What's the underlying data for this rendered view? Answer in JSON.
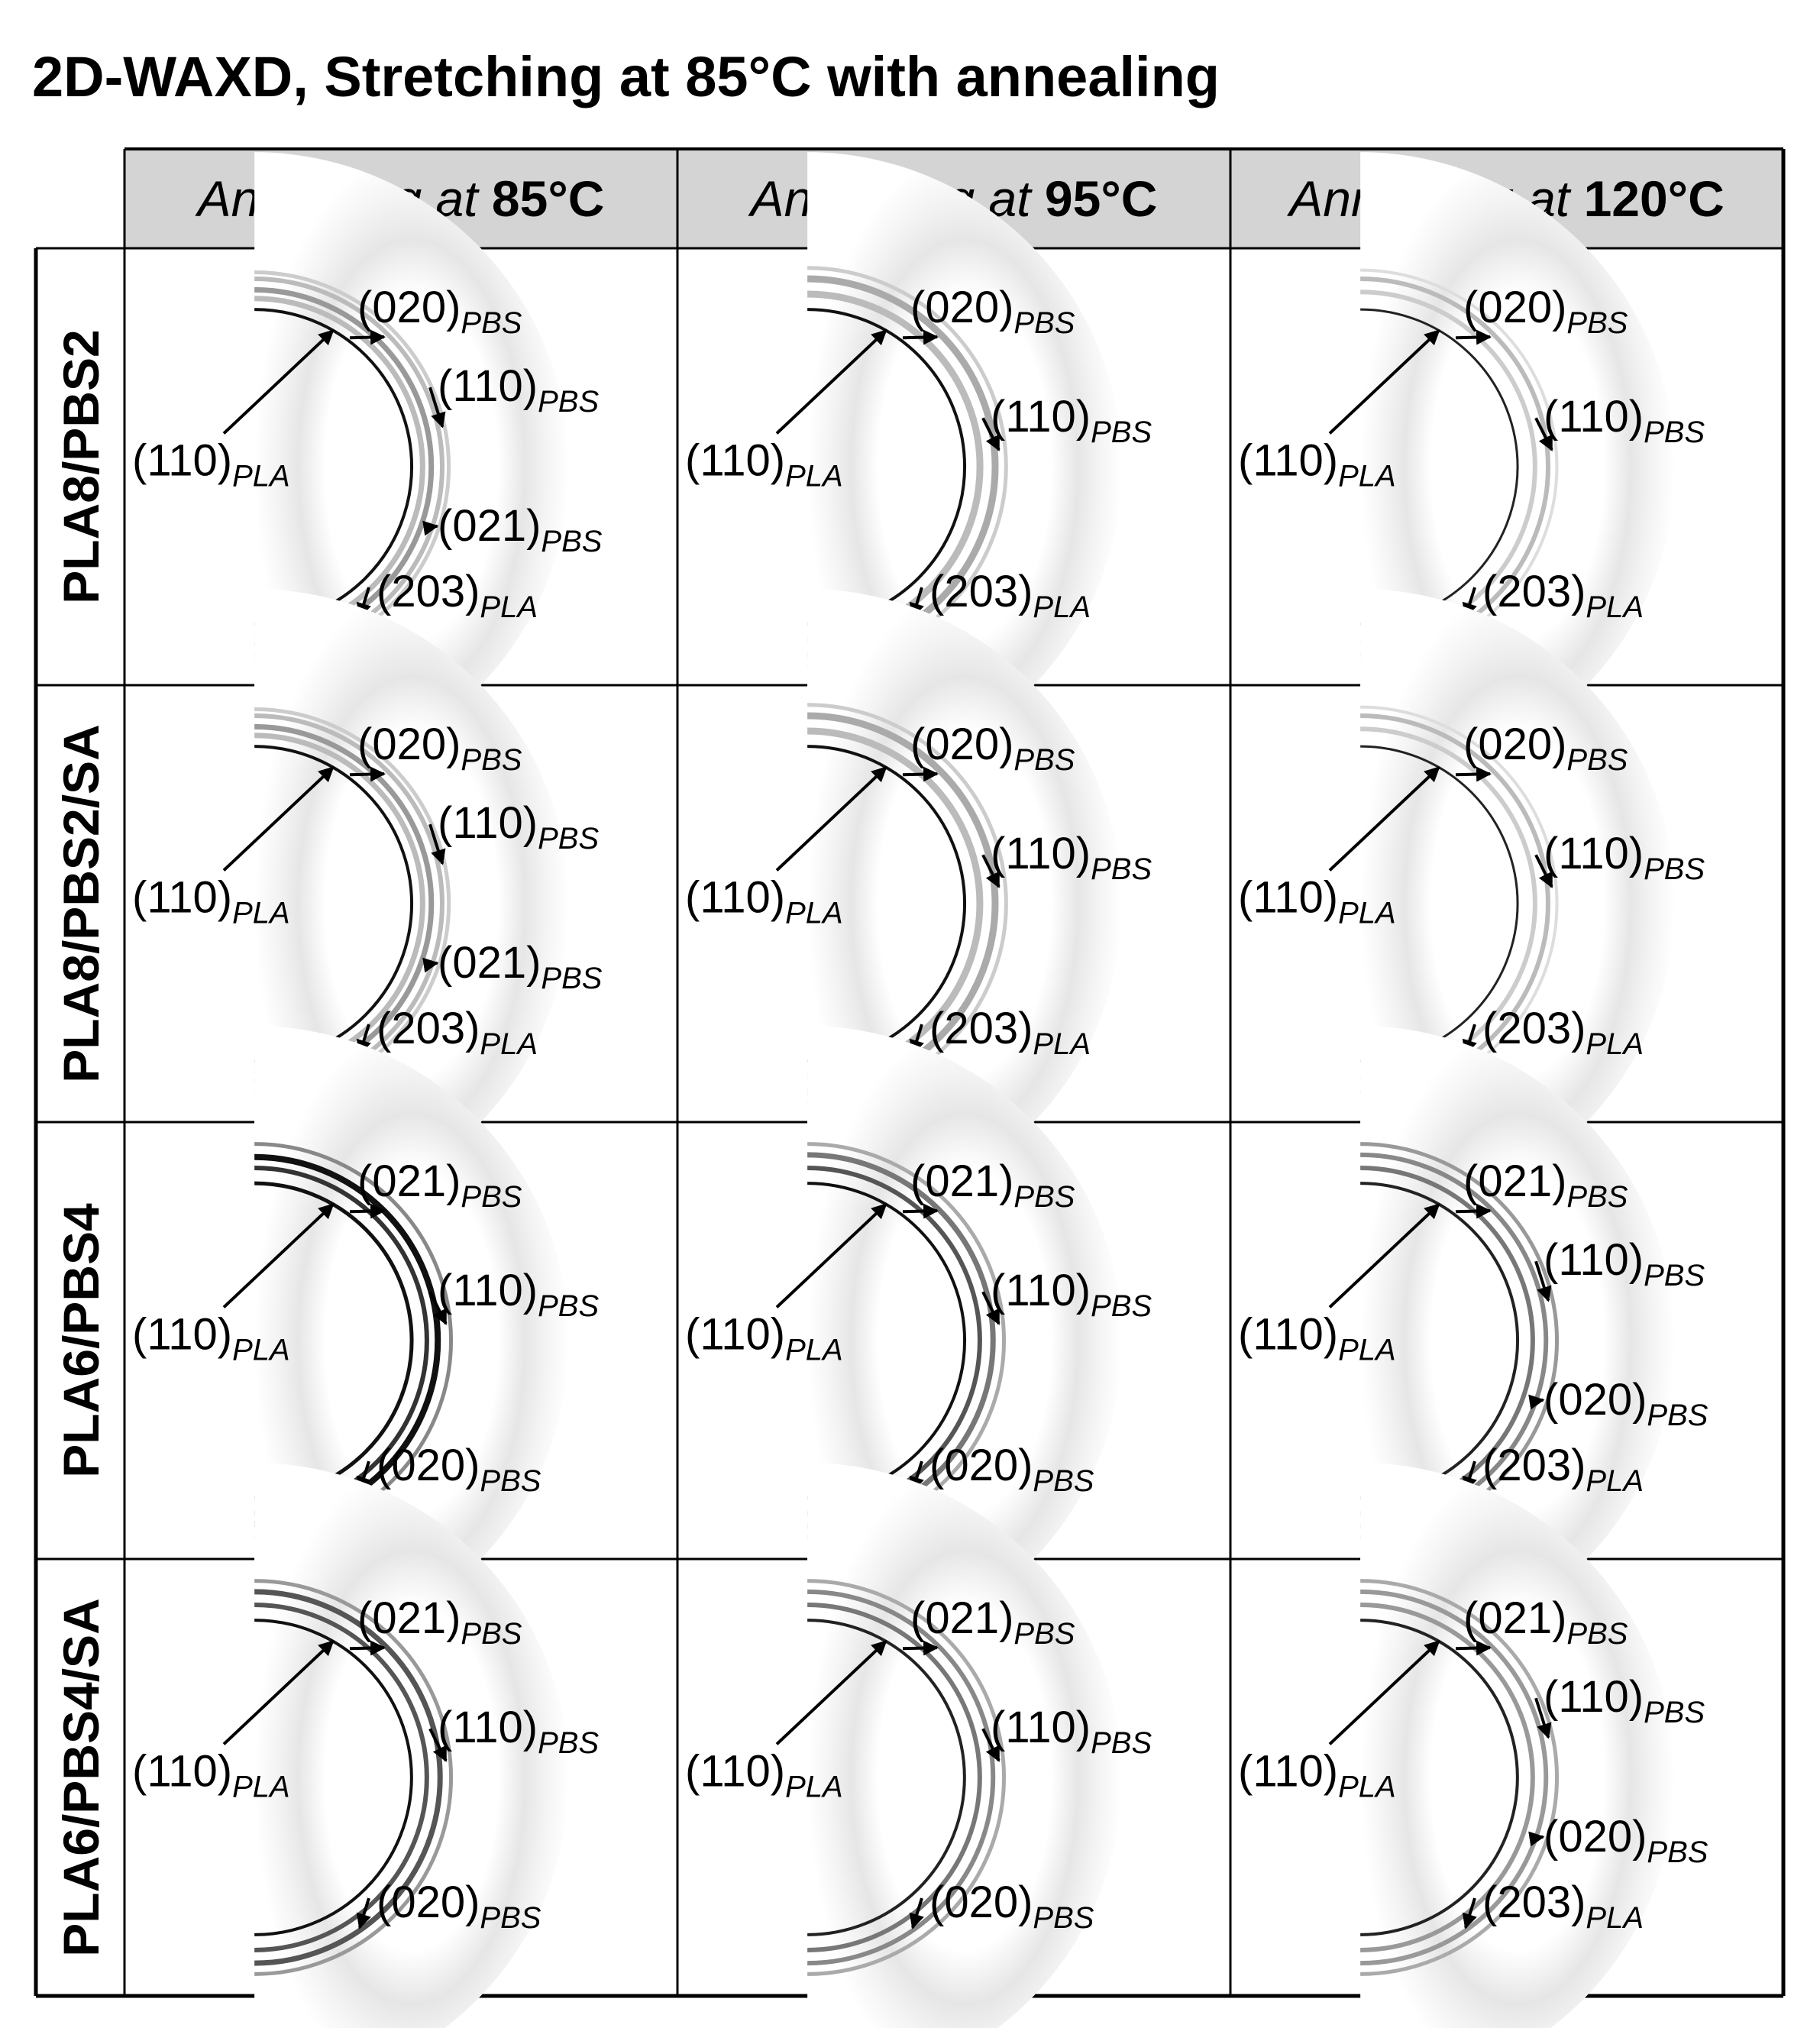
{
  "title": "2D-WAXD, Stretching at 85°C with annealing",
  "columns": [
    {
      "prefix": "Annealing at ",
      "temp": "85°C"
    },
    {
      "prefix": "Annealing at ",
      "temp": "95°C"
    },
    {
      "prefix": "Annealing at ",
      "temp": "120°C"
    }
  ],
  "rows": [
    "PLA8/PBS2",
    "PLA8/PBS2/SA",
    "PLA6/PBS4",
    "PLA6/PBS4/SA"
  ],
  "colors": {
    "header_bg": "#d4d4d4",
    "grid": "#000000",
    "arrow": "#000000"
  },
  "panels": [
    [
      {
        "rings": [
          {
            "r": 0.48,
            "w": 4,
            "c": "#111"
          },
          {
            "r": 0.53,
            "w": 7,
            "c": "#bbb"
          },
          {
            "r": 0.57,
            "w": 7,
            "c": "#999"
          },
          {
            "r": 0.62,
            "w": 6,
            "c": "#bbb"
          },
          {
            "r": 0.65,
            "w": 5,
            "c": "#ccc"
          }
        ],
        "labels": [
          {
            "miller": "(110)",
            "phase": "PLA",
            "slot": "left"
          },
          {
            "miller": "(020)",
            "phase": "PBS",
            "slot": "top"
          },
          {
            "miller": "(110)",
            "phase": "PBS",
            "slot": "upper-right"
          },
          {
            "miller": "(021)",
            "phase": "PBS",
            "slot": "lower-right"
          },
          {
            "miller": "(203)",
            "phase": "PLA",
            "slot": "bottom"
          }
        ]
      },
      {
        "rings": [
          {
            "r": 0.48,
            "w": 4,
            "c": "#111"
          },
          {
            "r": 0.55,
            "w": 9,
            "c": "#bbb"
          },
          {
            "r": 0.62,
            "w": 9,
            "c": "#aaa"
          },
          {
            "r": 0.67,
            "w": 5,
            "c": "#ccc"
          }
        ],
        "labels": [
          {
            "miller": "(110)",
            "phase": "PLA",
            "slot": "left"
          },
          {
            "miller": "(020)",
            "phase": "PBS",
            "slot": "top"
          },
          {
            "miller": "(110)",
            "phase": "PBS",
            "slot": "right"
          },
          {
            "miller": "(203)",
            "phase": "PLA",
            "slot": "bottom"
          }
        ]
      },
      {
        "rings": [
          {
            "r": 0.48,
            "w": 3,
            "c": "#222"
          },
          {
            "r": 0.56,
            "w": 6,
            "c": "#ccc"
          },
          {
            "r": 0.62,
            "w": 6,
            "c": "#bbb"
          },
          {
            "r": 0.66,
            "w": 4,
            "c": "#ddd"
          }
        ],
        "labels": [
          {
            "miller": "(110)",
            "phase": "PLA",
            "slot": "left"
          },
          {
            "miller": "(020)",
            "phase": "PBS",
            "slot": "top"
          },
          {
            "miller": "(110)",
            "phase": "PBS",
            "slot": "right"
          },
          {
            "miller": "(203)",
            "phase": "PLA",
            "slot": "bottom"
          }
        ]
      }
    ],
    [
      {
        "rings": [
          {
            "r": 0.48,
            "w": 4,
            "c": "#111"
          },
          {
            "r": 0.53,
            "w": 7,
            "c": "#bbb"
          },
          {
            "r": 0.57,
            "w": 7,
            "c": "#999"
          },
          {
            "r": 0.62,
            "w": 6,
            "c": "#bbb"
          },
          {
            "r": 0.65,
            "w": 5,
            "c": "#ccc"
          }
        ],
        "labels": [
          {
            "miller": "(110)",
            "phase": "PLA",
            "slot": "left"
          },
          {
            "miller": "(020)",
            "phase": "PBS",
            "slot": "top"
          },
          {
            "miller": "(110)",
            "phase": "PBS",
            "slot": "upper-right"
          },
          {
            "miller": "(021)",
            "phase": "PBS",
            "slot": "lower-right"
          },
          {
            "miller": "(203)",
            "phase": "PLA",
            "slot": "bottom"
          }
        ]
      },
      {
        "rings": [
          {
            "r": 0.48,
            "w": 4,
            "c": "#111"
          },
          {
            "r": 0.55,
            "w": 9,
            "c": "#bbb"
          },
          {
            "r": 0.62,
            "w": 9,
            "c": "#aaa"
          },
          {
            "r": 0.67,
            "w": 5,
            "c": "#ccc"
          }
        ],
        "labels": [
          {
            "miller": "(110)",
            "phase": "PLA",
            "slot": "left"
          },
          {
            "miller": "(020)",
            "phase": "PBS",
            "slot": "top"
          },
          {
            "miller": "(110)",
            "phase": "PBS",
            "slot": "right"
          },
          {
            "miller": "(203)",
            "phase": "PLA",
            "slot": "bottom"
          }
        ]
      },
      {
        "rings": [
          {
            "r": 0.48,
            "w": 3,
            "c": "#222"
          },
          {
            "r": 0.56,
            "w": 6,
            "c": "#ccc"
          },
          {
            "r": 0.62,
            "w": 6,
            "c": "#bbb"
          },
          {
            "r": 0.66,
            "w": 4,
            "c": "#ddd"
          }
        ],
        "labels": [
          {
            "miller": "(110)",
            "phase": "PLA",
            "slot": "left"
          },
          {
            "miller": "(020)",
            "phase": "PBS",
            "slot": "top"
          },
          {
            "miller": "(110)",
            "phase": "PBS",
            "slot": "right"
          },
          {
            "miller": "(203)",
            "phase": "PLA",
            "slot": "bottom"
          }
        ]
      }
    ],
    [
      {
        "rings": [
          {
            "r": 0.48,
            "w": 5,
            "c": "#111"
          },
          {
            "r": 0.55,
            "w": 6,
            "c": "#333"
          },
          {
            "r": 0.6,
            "w": 8,
            "c": "#111"
          },
          {
            "r": 0.66,
            "w": 5,
            "c": "#888"
          }
        ],
        "labels": [
          {
            "miller": "(110)",
            "phase": "PLA",
            "slot": "left"
          },
          {
            "miller": "(021)",
            "phase": "PBS",
            "slot": "top"
          },
          {
            "miller": "(110)",
            "phase": "PBS",
            "slot": "right"
          },
          {
            "miller": "(020)",
            "phase": "PBS",
            "slot": "bottom"
          }
        ]
      },
      {
        "rings": [
          {
            "r": 0.48,
            "w": 4,
            "c": "#111"
          },
          {
            "r": 0.55,
            "w": 6,
            "c": "#555"
          },
          {
            "r": 0.61,
            "w": 7,
            "c": "#777"
          },
          {
            "r": 0.66,
            "w": 5,
            "c": "#aaa"
          }
        ],
        "labels": [
          {
            "miller": "(110)",
            "phase": "PLA",
            "slot": "left"
          },
          {
            "miller": "(021)",
            "phase": "PBS",
            "slot": "top"
          },
          {
            "miller": "(110)",
            "phase": "PBS",
            "slot": "right"
          },
          {
            "miller": "(020)",
            "phase": "PBS",
            "slot": "bottom"
          }
        ]
      },
      {
        "rings": [
          {
            "r": 0.48,
            "w": 4,
            "c": "#222"
          },
          {
            "r": 0.55,
            "w": 6,
            "c": "#777"
          },
          {
            "r": 0.61,
            "w": 6,
            "c": "#888"
          },
          {
            "r": 0.66,
            "w": 5,
            "c": "#999"
          }
        ],
        "labels": [
          {
            "miller": "(110)",
            "phase": "PLA",
            "slot": "left"
          },
          {
            "miller": "(021)",
            "phase": "PBS",
            "slot": "top"
          },
          {
            "miller": "(110)",
            "phase": "PBS",
            "slot": "upper-right"
          },
          {
            "miller": "(020)",
            "phase": "PBS",
            "slot": "lower-right"
          },
          {
            "miller": "(203)",
            "phase": "PLA",
            "slot": "bottom"
          }
        ]
      }
    ],
    [
      {
        "rings": [
          {
            "r": 0.48,
            "w": 4,
            "c": "#111"
          },
          {
            "r": 0.55,
            "w": 6,
            "c": "#555"
          },
          {
            "r": 0.61,
            "w": 7,
            "c": "#555"
          },
          {
            "r": 0.66,
            "w": 5,
            "c": "#999"
          }
        ],
        "labels": [
          {
            "miller": "(110)",
            "phase": "PLA",
            "slot": "left"
          },
          {
            "miller": "(021)",
            "phase": "PBS",
            "slot": "top"
          },
          {
            "miller": "(110)",
            "phase": "PBS",
            "slot": "right"
          },
          {
            "miller": "(020)",
            "phase": "PBS",
            "slot": "bottom"
          }
        ]
      },
      {
        "rings": [
          {
            "r": 0.48,
            "w": 4,
            "c": "#222"
          },
          {
            "r": 0.55,
            "w": 6,
            "c": "#777"
          },
          {
            "r": 0.61,
            "w": 6,
            "c": "#888"
          },
          {
            "r": 0.66,
            "w": 5,
            "c": "#aaa"
          }
        ],
        "labels": [
          {
            "miller": "(110)",
            "phase": "PLA",
            "slot": "left"
          },
          {
            "miller": "(021)",
            "phase": "PBS",
            "slot": "top"
          },
          {
            "miller": "(110)",
            "phase": "PBS",
            "slot": "right"
          },
          {
            "miller": "(020)",
            "phase": "PBS",
            "slot": "bottom"
          }
        ]
      },
      {
        "rings": [
          {
            "r": 0.48,
            "w": 4,
            "c": "#222"
          },
          {
            "r": 0.55,
            "w": 6,
            "c": "#999"
          },
          {
            "r": 0.61,
            "w": 6,
            "c": "#999"
          },
          {
            "r": 0.66,
            "w": 5,
            "c": "#aaa"
          }
        ],
        "labels": [
          {
            "miller": "(110)",
            "phase": "PLA",
            "slot": "left"
          },
          {
            "miller": "(021)",
            "phase": "PBS",
            "slot": "top"
          },
          {
            "miller": "(110)",
            "phase": "PBS",
            "slot": "upper-right"
          },
          {
            "miller": "(020)",
            "phase": "PBS",
            "slot": "lower-right"
          },
          {
            "miller": "(203)",
            "phase": "PLA",
            "slot": "bottom"
          }
        ]
      }
    ]
  ]
}
